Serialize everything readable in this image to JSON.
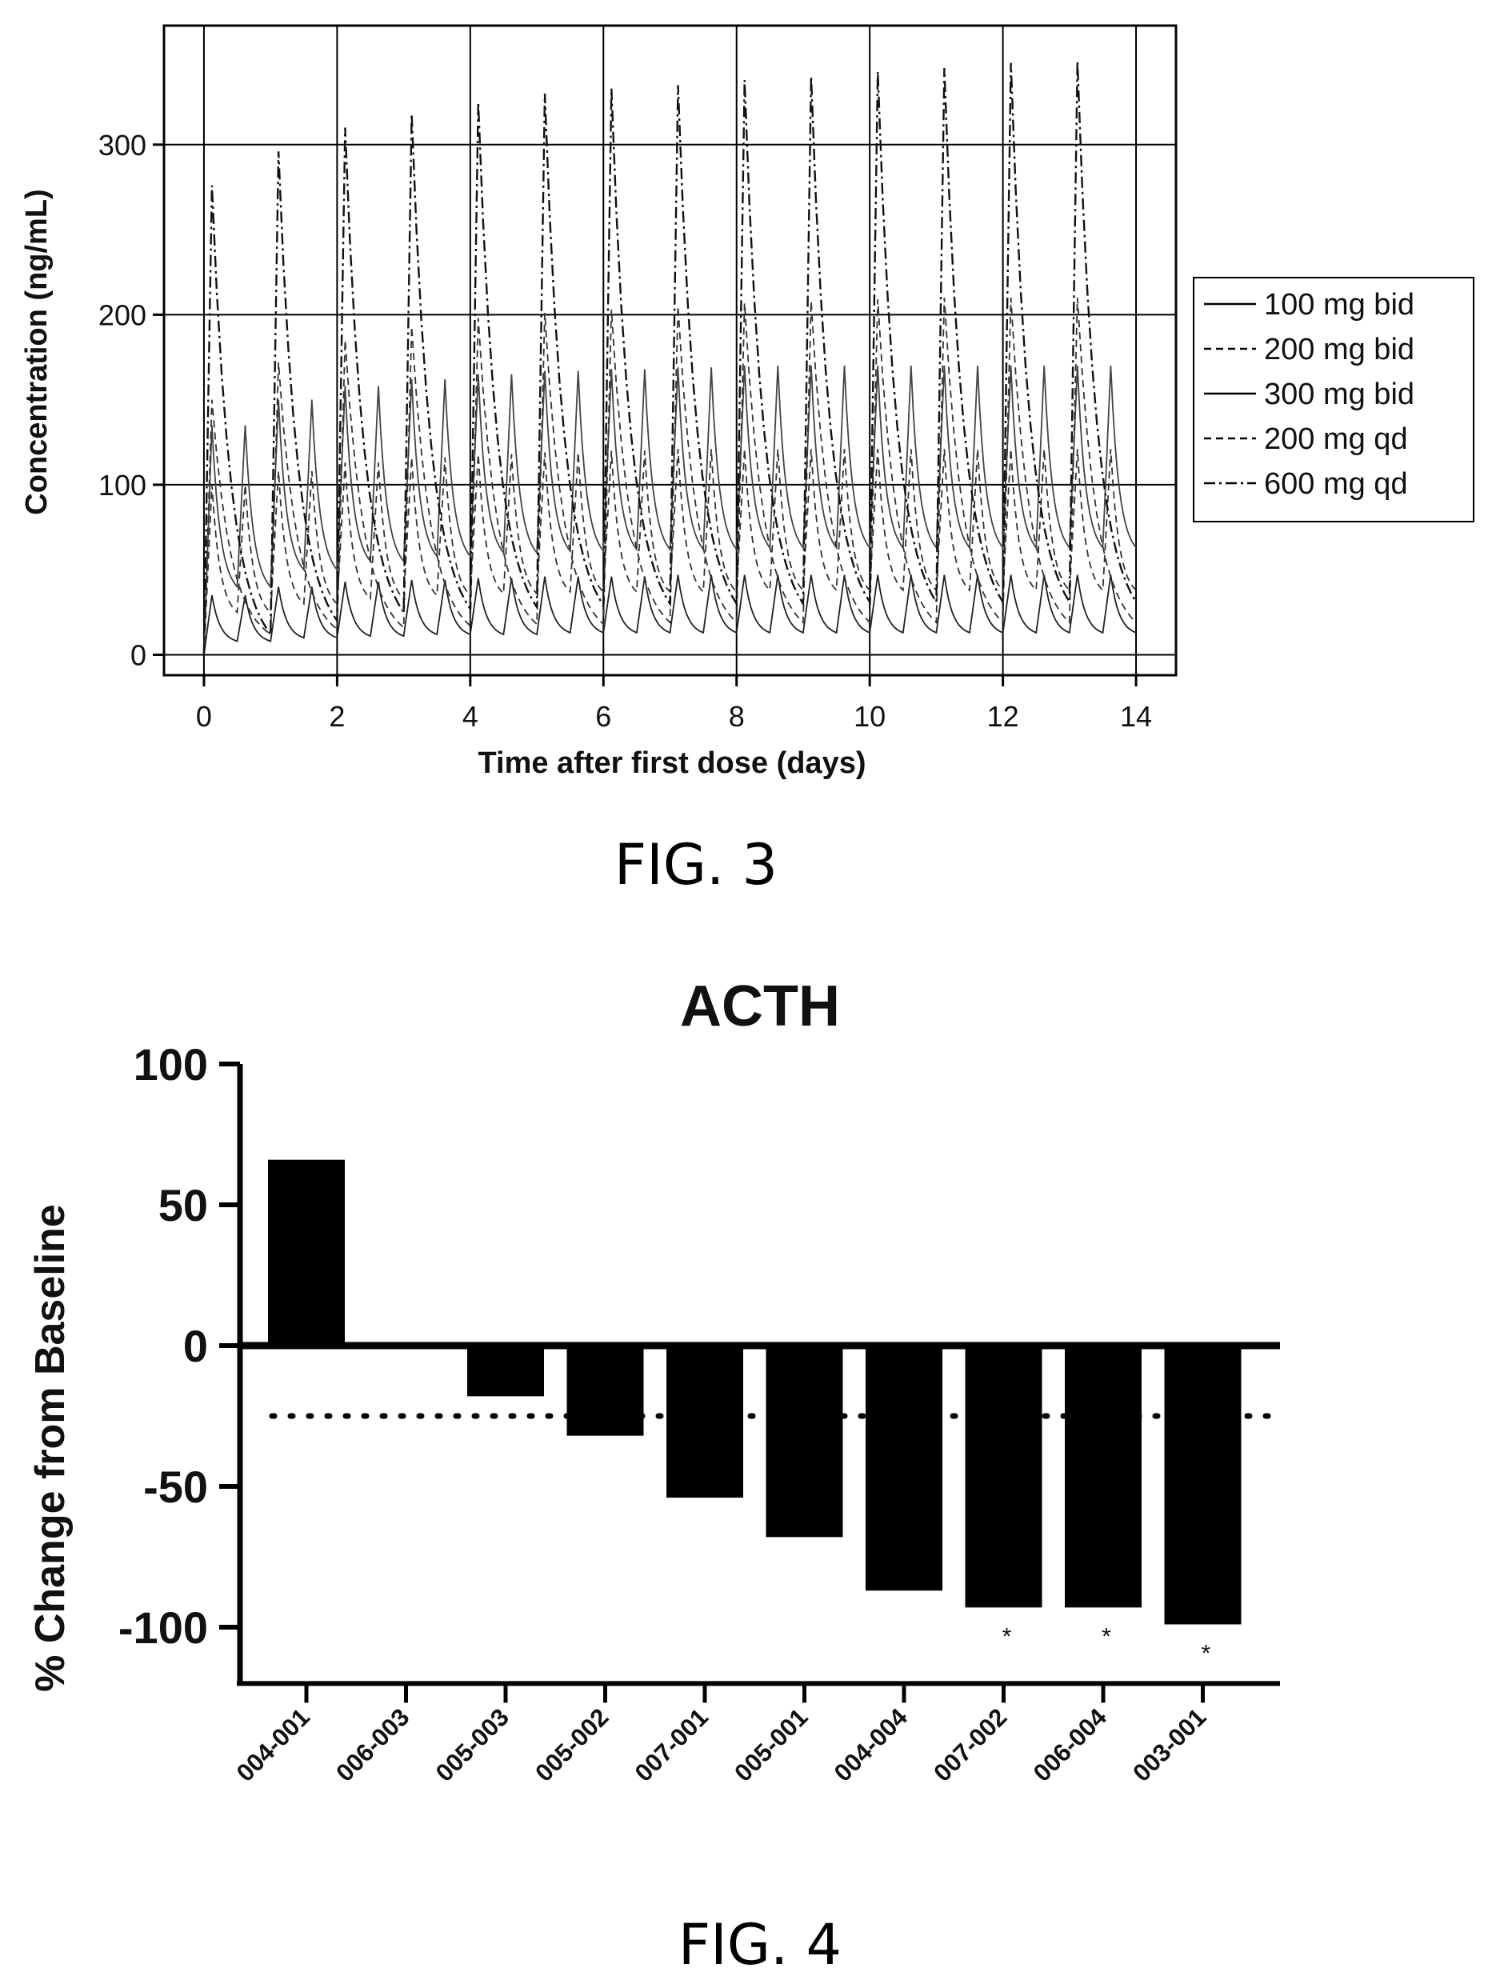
{
  "figures": {
    "fig3_caption": "FIG. 3",
    "fig4_caption": "FIG. 4"
  },
  "chart_data": [
    {
      "type": "line",
      "title": "",
      "xlabel": "Time after first dose (days)",
      "ylabel": "Concentration (ng/mL)",
      "xlim": [
        -0.6,
        14.6
      ],
      "ylim": [
        -12,
        370
      ],
      "x_ticks": [
        0,
        2,
        4,
        6,
        8,
        10,
        12,
        14
      ],
      "y_ticks": [
        0,
        100,
        200,
        300
      ],
      "grid": true,
      "legend_position": "right",
      "series": [
        {
          "name": "100 mg bid",
          "dash": "solid",
          "color": "#222222",
          "peaks": [
            35,
            40,
            43,
            44,
            45,
            46,
            46,
            47,
            47,
            47,
            47,
            47,
            47,
            47
          ],
          "troughs": [
            8,
            10,
            11,
            12,
            12,
            13,
            13,
            13,
            13,
            13,
            13,
            13,
            13,
            13
          ]
        },
        {
          "name": "200 mg bid",
          "dash": "dashed",
          "color": "#333333",
          "peaks": [
            100,
            108,
            113,
            116,
            118,
            119,
            120,
            121,
            121,
            121,
            121,
            121,
            121,
            121
          ],
          "troughs": [
            25,
            30,
            33,
            35,
            36,
            37,
            37,
            37,
            38,
            38,
            38,
            38,
            38,
            38
          ]
        },
        {
          "name": "300 mg bid",
          "dash": "solid",
          "color": "#444444",
          "peaks": [
            135,
            150,
            158,
            162,
            165,
            167,
            168,
            169,
            170,
            170,
            170,
            170,
            170,
            170
          ],
          "troughs": [
            40,
            50,
            55,
            58,
            60,
            61,
            62,
            62,
            63,
            63,
            63,
            63,
            63,
            63
          ]
        },
        {
          "name": "200 mg qd",
          "dash": "dashed",
          "color": "#333333",
          "peaks": [
            150,
            172,
            185,
            193,
            198,
            201,
            203,
            205,
            207,
            208,
            209,
            210,
            210,
            210
          ],
          "troughs": [
            12,
            15,
            16,
            17,
            18,
            18,
            19,
            19,
            19,
            19,
            19,
            19,
            19,
            19
          ]
        },
        {
          "name": "600 mg qd",
          "dash": "dashdot",
          "color": "#111111",
          "peaks": [
            276,
            296,
            310,
            318,
            325,
            330,
            333,
            335,
            338,
            340,
            343,
            345,
            348,
            349
          ],
          "troughs": [
            12,
            20,
            25,
            27,
            28,
            29,
            30,
            30,
            30,
            31,
            31,
            31,
            31,
            31
          ]
        }
      ]
    },
    {
      "type": "bar",
      "title": "ACTH",
      "xlabel": "",
      "ylabel": "% Change from Baseline",
      "ylim": [
        -120,
        100
      ],
      "y_ticks": [
        100,
        50,
        0,
        -50,
        -100
      ],
      "categories": [
        "004-001",
        "006-003",
        "005-003",
        "005-002",
        "007-001",
        "005-001",
        "004-004",
        "007-002",
        "006-004",
        "003-001"
      ],
      "values": [
        66,
        0,
        -18,
        -32,
        -54,
        -68,
        -87,
        -93,
        -93,
        -99
      ],
      "asterisk_after": [
        "007-002",
        "006-004",
        "003-001"
      ],
      "asterisk_label": "*",
      "reference_line": -25,
      "bar_color": "#000000"
    }
  ]
}
